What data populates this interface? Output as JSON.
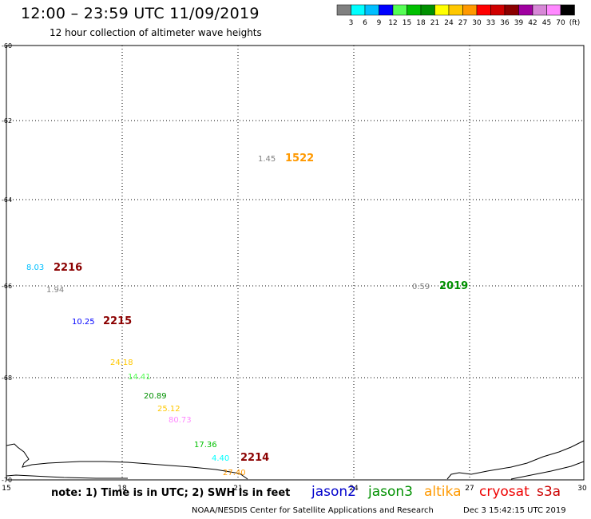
{
  "header": {
    "title": "12:00 – 23:59 UTC 11/09/2019",
    "subtitle": "12 hour collection of altimeter wave heights"
  },
  "color_scale": {
    "colors": [
      "#808080",
      "#00ffff",
      "#00bfff",
      "#0000ff",
      "#55ff55",
      "#00c000",
      "#009000",
      "#ffff00",
      "#ffc800",
      "#ff9900",
      "#ff0000",
      "#d00000",
      "#8b0000",
      "#a000a0",
      "#d787d7",
      "#ff88ff",
      "#000000"
    ],
    "labels": [
      "3",
      "6",
      "9",
      "12",
      "15",
      "18",
      "21",
      "24",
      "27",
      "30",
      "33",
      "36",
      "39",
      "42",
      "45",
      "70",
      "(ft)"
    ]
  },
  "map": {
    "x_ticks": [
      "15",
      "18",
      "21",
      "24",
      "27",
      "30"
    ],
    "y_ticks": [
      "-60",
      "-62",
      "-64",
      "-66",
      "-68",
      "-70"
    ]
  },
  "observations": [
    {
      "text": "1.45",
      "color": "#808080"
    },
    {
      "text": "1522",
      "color": "#ff9900",
      "kind": "time"
    },
    {
      "text": "8.03",
      "color": "#00bfff"
    },
    {
      "text": "2216",
      "color": "#8b0000",
      "kind": "time"
    },
    {
      "text": "1.94",
      "color": "#808080"
    },
    {
      "text": "0.59",
      "color": "#808080"
    },
    {
      "text": "2019",
      "color": "#009000",
      "kind": "time"
    },
    {
      "text": "10.25",
      "color": "#0000ff"
    },
    {
      "text": "2215",
      "color": "#8b0000",
      "kind": "time"
    },
    {
      "text": "24.18",
      "color": "#ffc800"
    },
    {
      "text": "14.41",
      "color": "#55ff55"
    },
    {
      "text": "20.89",
      "color": "#009000"
    },
    {
      "text": "25.12",
      "color": "#ffc800"
    },
    {
      "text": "80.73",
      "color": "#ff88ff"
    },
    {
      "text": "17.36",
      "color": "#00c000"
    },
    {
      "text": "4.40",
      "color": "#00ffff"
    },
    {
      "text": "2214",
      "color": "#8b0000",
      "kind": "time"
    },
    {
      "text": "27.40",
      "color": "#ff9900"
    }
  ],
  "footer": {
    "note": "note:  1) Time is in UTC;  2) SWH is in feet",
    "missions": [
      {
        "name": "jason2",
        "color": "#0000cc"
      },
      {
        "name": "jason3",
        "color": "#009000"
      },
      {
        "name": "altika",
        "color": "#ff9900"
      },
      {
        "name": "cryosat",
        "color": "#ee0000"
      },
      {
        "name": "s3a",
        "color": "#cc0000"
      }
    ],
    "credit": "NOAA/NESDIS Center for Satellite Applications and Research",
    "timestamp": "Dec  3 15:42:15 UTC 2019"
  }
}
